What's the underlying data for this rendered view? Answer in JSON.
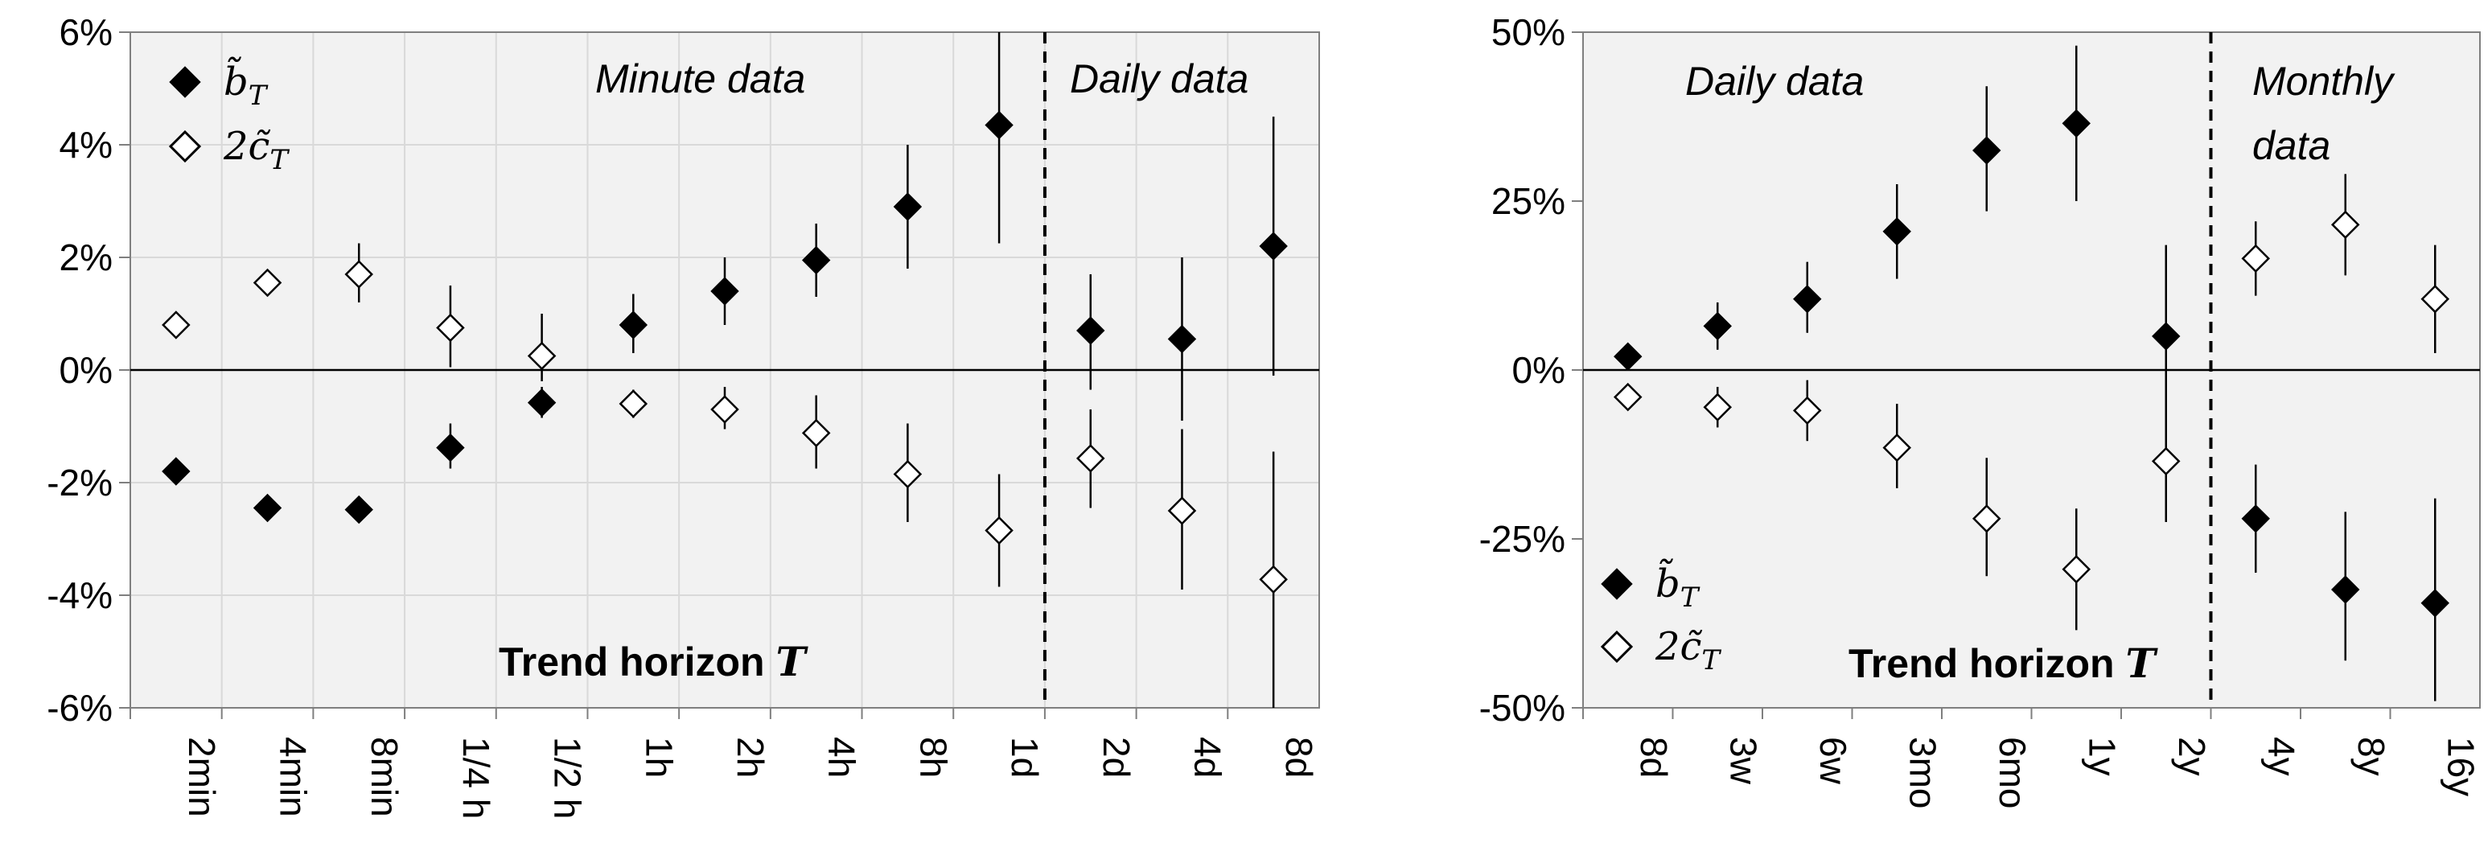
{
  "chart_data": [
    {
      "type": "scatter",
      "ylim": [
        -6,
        6
      ],
      "yticks": [
        "-6%",
        "-4%",
        "-2%",
        "0%",
        "2%",
        "4%",
        "6%"
      ],
      "categories": [
        "2min",
        "4min",
        "8min",
        "1/4 h",
        "1/2 h",
        "1h",
        "2h",
        "4h",
        "8h",
        "1d",
        "2d",
        "4d",
        "8d"
      ],
      "grid": true,
      "divider_after": "1d",
      "regions": [
        "Minute data",
        "Daily  data"
      ],
      "axis_title": {
        "text": "Trend horizon ",
        "var": "T"
      },
      "legend": {
        "placement": "top-left",
        "entries": [
          {
            "label": "b̃T",
            "marker": "filled-diamond"
          },
          {
            "label": "2c̃T",
            "marker": "open-diamond"
          }
        ]
      },
      "series": [
        {
          "label": "b̃T",
          "marker": "filled-diamond",
          "values": [
            -1.8,
            -2.45,
            -2.48,
            -1.38,
            -0.58,
            0.8,
            1.4,
            1.95,
            2.9,
            4.35,
            0.7,
            0.55,
            2.2
          ],
          "err_low": [
            null,
            null,
            -2.7,
            -1.75,
            -0.85,
            0.3,
            0.8,
            1.3,
            1.8,
            2.25,
            -0.35,
            -0.9,
            -0.1
          ],
          "err_high": [
            null,
            null,
            -2.25,
            -0.95,
            -0.3,
            1.35,
            2.0,
            2.6,
            4.0,
            6.0,
            1.7,
            2.0,
            4.5
          ]
        },
        {
          "label": "2c̃T",
          "marker": "open-diamond",
          "values": [
            0.8,
            1.55,
            1.7,
            0.75,
            0.25,
            -0.6,
            -0.7,
            -1.12,
            -1.85,
            -2.85,
            -1.57,
            -2.5,
            -3.72
          ],
          "err_low": [
            null,
            null,
            1.2,
            0.05,
            -0.2,
            -0.85,
            -1.05,
            -1.75,
            -2.7,
            -3.85,
            -2.45,
            -3.9,
            -6.0
          ],
          "err_high": [
            null,
            null,
            2.25,
            1.5,
            1.0,
            -0.35,
            -0.3,
            -0.45,
            -0.95,
            -1.85,
            -0.7,
            -1.05,
            -1.45
          ]
        }
      ]
    },
    {
      "type": "scatter",
      "ylim": [
        -50,
        50
      ],
      "yticks": [
        "-50%",
        "-25%",
        "0%",
        "25%",
        "50%"
      ],
      "categories": [
        "8d",
        "3w",
        "6w",
        "3mo",
        "6mo",
        "1y",
        "2y",
        "4y",
        "8y",
        "16y"
      ],
      "grid": false,
      "divider_after": "2y",
      "regions": [
        "Daily data",
        "Monthly",
        "data"
      ],
      "axis_title": {
        "text": "Trend horizon ",
        "var": "T"
      },
      "legend": {
        "placement": "bottom-left",
        "entries": [
          {
            "label": "b̃T",
            "marker": "filled-diamond"
          },
          {
            "label": "2c̃T",
            "marker": "open-diamond"
          }
        ]
      },
      "series": [
        {
          "label": "b̃T",
          "marker": "filled-diamond",
          "values": [
            2,
            6.5,
            10.5,
            20.5,
            32.5,
            36.5,
            5,
            -22,
            -32.5,
            -34.5
          ],
          "err_low": [
            null,
            3,
            5.5,
            13.5,
            23.5,
            25,
            -8,
            -30,
            -43,
            -49
          ],
          "err_high": [
            null,
            10,
            16,
            27.5,
            42,
            48,
            18.5,
            -14,
            -21,
            -19
          ]
        },
        {
          "label": "2c̃T",
          "marker": "open-diamond",
          "values": [
            -4,
            -5.5,
            -6,
            -11.5,
            -22,
            -29.5,
            -13.5,
            16.5,
            21.5,
            10.5
          ],
          "err_low": [
            null,
            -8.5,
            -10.5,
            -17.5,
            -30.5,
            -38.5,
            -22.5,
            11,
            14,
            2.5
          ],
          "err_high": [
            null,
            -2.5,
            -1.5,
            -5,
            -13,
            -20.5,
            -4.5,
            22,
            29,
            18.5
          ]
        }
      ]
    }
  ]
}
